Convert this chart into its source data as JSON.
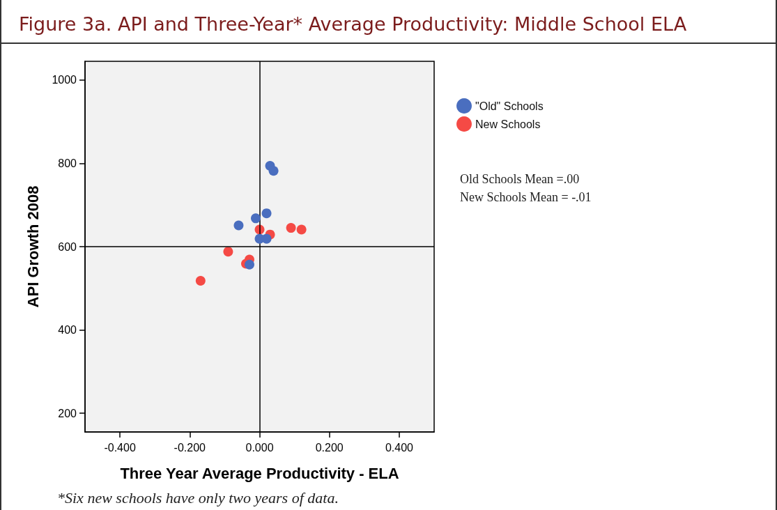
{
  "chart_data": {
    "type": "scatter",
    "title": "Figure 3a. API and Three-Year* Average Productivity: Middle School ELA",
    "xlabel": "Three Year Average Productivity - ELA",
    "ylabel": "API Growth 2008",
    "xlim": [
      -0.5,
      0.5
    ],
    "xticks": [
      {
        "value": -0.4,
        "label": "-0.400"
      },
      {
        "value": -0.2,
        "label": "-0.200"
      },
      {
        "value": 0,
        "label": "0.000"
      },
      {
        "value": 0.2,
        "label": "0.200"
      },
      {
        "value": 0.4,
        "label": "0.400"
      }
    ],
    "ylim": [
      155,
      1045
    ],
    "yticks": [
      200,
      400,
      600,
      800,
      1000
    ],
    "series": [
      {
        "name": "\"Old\" Schools",
        "color": "#4a6ebf",
        "x": [
          0.03,
          0.04,
          0.02,
          -0.011,
          -0.06,
          0,
          0.02,
          -0.029
        ],
        "values": [
          794,
          782,
          680,
          668,
          651,
          619,
          619,
          557
        ]
      },
      {
        "name": "New Schools",
        "color": "#f54a45",
        "x": [
          0,
          0.03,
          0.09,
          0.12,
          -0.09,
          -0.029,
          -0.039,
          -0.169
        ],
        "values": [
          641,
          629,
          645,
          641,
          588,
          569,
          559,
          518
        ]
      }
    ],
    "ref_lines": [
      {
        "axis": "x",
        "value": 0,
        "color": "#000000"
      },
      {
        "axis": "y",
        "value": 600,
        "color": "#000000"
      }
    ],
    "annotations": [
      "Old Schools Mean =.00",
      "New Schools Mean = -.01",
      "*Six new schools have only two years of data."
    ],
    "legend": "top right",
    "grid": false,
    "marker": "circle"
  }
}
